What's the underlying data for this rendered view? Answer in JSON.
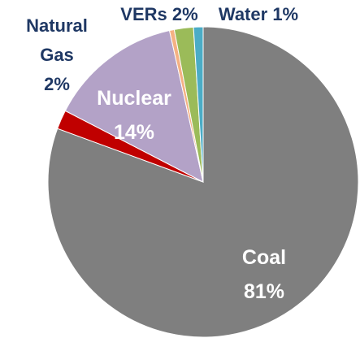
{
  "chart_data": {
    "type": "pie",
    "categories": [
      "Coal",
      "Natural Gas",
      "Nuclear",
      null,
      "VERs",
      "Water"
    ],
    "values": [
      81,
      2,
      14,
      0.5,
      2,
      1
    ],
    "value_labels": [
      "81%",
      "2%",
      "14%",
      null,
      "2%",
      "1%"
    ],
    "colors": [
      "#7f7f7f",
      "#c00000",
      "#b3a2c7",
      "#f4b183",
      "#9bbb59",
      "#4bacc6"
    ]
  }
}
